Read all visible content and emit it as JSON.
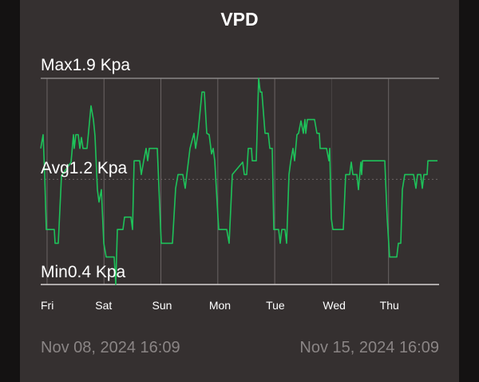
{
  "title": "VPD",
  "stats": {
    "max": "Max1.9 Kpa",
    "avg": "Avg1.2 Kpa",
    "min": "Min0.4 Kpa"
  },
  "range": {
    "start": "Nov 08, 2024 16:09",
    "end": "Nov 15, 2024 16:09"
  },
  "colors": {
    "line": "#1ec25a",
    "panel": "#353030",
    "background": "#141212",
    "muted_text": "#8a8585"
  },
  "chart_data": {
    "type": "line",
    "title": "VPD",
    "ylabel": "",
    "unit": "Kpa",
    "ylim": [
      0.4,
      1.9
    ],
    "max": 1.9,
    "avg": 1.2,
    "min": 0.4,
    "xlim": [
      "2024-11-08T16:09",
      "2024-11-15T16:09"
    ],
    "x_ticks": [
      {
        "label": "Fri",
        "t": "2024-11-08T18:50"
      },
      {
        "label": "Sat",
        "t": "2024-11-09T18:50"
      },
      {
        "label": "Sun",
        "t": "2024-11-10T18:50"
      },
      {
        "label": "Mon",
        "t": "2024-11-11T18:50"
      },
      {
        "label": "Tue",
        "t": "2024-11-12T18:50"
      },
      {
        "label": "Wed",
        "t": "2024-11-13T18:50"
      },
      {
        "label": "Thu",
        "t": "2024-11-14T18:50"
      }
    ],
    "grid": true,
    "legend": "none",
    "points": [
      [
        "2024-11-08T16:09",
        1.39
      ],
      [
        "2024-11-08T17:10",
        1.49
      ],
      [
        "2024-11-08T17:50",
        1.19
      ],
      [
        "2024-11-08T18:30",
        0.8
      ],
      [
        "2024-11-08T21:52",
        0.8
      ],
      [
        "2024-11-08T22:13",
        0.7
      ],
      [
        "2024-11-08T23:33",
        0.7
      ],
      [
        "2024-11-09T00:54",
        1.19
      ],
      [
        "2024-11-09T04:57",
        1.29
      ],
      [
        "2024-11-09T05:57",
        1.49
      ],
      [
        "2024-11-09T06:17",
        1.39
      ],
      [
        "2024-11-09T06:58",
        1.49
      ],
      [
        "2024-11-09T07:58",
        1.49
      ],
      [
        "2024-11-09T08:39",
        1.39
      ],
      [
        "2024-11-09T09:19",
        1.47
      ],
      [
        "2024-11-09T10:00",
        1.39
      ],
      [
        "2024-11-09T11:41",
        1.39
      ],
      [
        "2024-11-09T13:22",
        1.7
      ],
      [
        "2024-11-09T14:22",
        1.6
      ],
      [
        "2024-11-09T15:03",
        1.48
      ],
      [
        "2024-11-09T16:03",
        1.09
      ],
      [
        "2024-11-09T16:44",
        1.0
      ],
      [
        "2024-11-09T17:44",
        1.09
      ],
      [
        "2024-11-09T18:45",
        0.7
      ],
      [
        "2024-11-09T19:45",
        0.6
      ],
      [
        "2024-11-09T23:07",
        0.6
      ],
      [
        "2024-11-09T23:48",
        0.4
      ],
      [
        "2024-11-10T00:28",
        0.8
      ],
      [
        "2024-11-10T02:50",
        0.8
      ],
      [
        "2024-11-10T03:30",
        0.89
      ],
      [
        "2024-11-10T06:12",
        0.89
      ],
      [
        "2024-11-10T06:52",
        0.8
      ],
      [
        "2024-11-10T07:32",
        1.3
      ],
      [
        "2024-11-10T09:54",
        1.3
      ],
      [
        "2024-11-10T10:34",
        1.2
      ],
      [
        "2024-11-10T11:35",
        1.3
      ],
      [
        "2024-11-10T12:35",
        1.39
      ],
      [
        "2024-11-10T13:16",
        1.3
      ],
      [
        "2024-11-10T13:56",
        1.39
      ],
      [
        "2024-11-10T17:18",
        1.39
      ],
      [
        "2024-11-10T18:59",
        0.7
      ],
      [
        "2024-11-10T23:42",
        0.7
      ],
      [
        "2024-11-11T01:03",
        1.1
      ],
      [
        "2024-11-11T02:03",
        1.2
      ],
      [
        "2024-11-11T04:05",
        1.2
      ],
      [
        "2024-11-11T05:05",
        1.1
      ],
      [
        "2024-11-11T05:46",
        1.2
      ],
      [
        "2024-11-11T07:06",
        1.39
      ],
      [
        "2024-11-11T08:47",
        1.5
      ],
      [
        "2024-11-11T09:28",
        1.39
      ],
      [
        "2024-11-11T10:28",
        1.5
      ],
      [
        "2024-11-11T12:09",
        1.8
      ],
      [
        "2024-11-11T13:10",
        1.8
      ],
      [
        "2024-11-11T14:11",
        1.5
      ],
      [
        "2024-11-11T15:11",
        1.49
      ],
      [
        "2024-11-11T16:12",
        1.35
      ],
      [
        "2024-11-11T16:52",
        1.39
      ],
      [
        "2024-11-11T17:33",
        1.3
      ],
      [
        "2024-11-11T18:53",
        0.89
      ],
      [
        "2024-11-11T19:14",
        0.8
      ],
      [
        "2024-11-11T22:36",
        0.8
      ],
      [
        "2024-11-11T23:36",
        0.7
      ],
      [
        "2024-11-12T00:57",
        1.2
      ],
      [
        "2024-11-12T05:20",
        1.29
      ],
      [
        "2024-11-12T06:00",
        1.2
      ],
      [
        "2024-11-12T07:01",
        1.2
      ],
      [
        "2024-11-12T07:41",
        1.39
      ],
      [
        "2024-11-12T09:02",
        1.39
      ],
      [
        "2024-11-12T09:22",
        1.3
      ],
      [
        "2024-11-12T11:03",
        1.3
      ],
      [
        "2024-11-12T12:04",
        1.9
      ],
      [
        "2024-11-12T12:44",
        1.8
      ],
      [
        "2024-11-12T13:24",
        1.8
      ],
      [
        "2024-11-12T14:45",
        1.5
      ],
      [
        "2024-11-12T16:06",
        1.5
      ],
      [
        "2024-11-12T16:46",
        1.39
      ],
      [
        "2024-11-12T17:47",
        1.39
      ],
      [
        "2024-11-12T18:27",
        0.8
      ],
      [
        "2024-11-12T20:29",
        0.8
      ],
      [
        "2024-11-12T21:09",
        0.7
      ],
      [
        "2024-11-12T21:49",
        0.8
      ],
      [
        "2024-11-12T23:10",
        0.8
      ],
      [
        "2024-11-12T23:51",
        0.7
      ],
      [
        "2024-11-13T00:51",
        1.2
      ],
      [
        "2024-11-13T01:32",
        1.29
      ],
      [
        "2024-11-13T02:32",
        1.39
      ],
      [
        "2024-11-13T03:13",
        1.3
      ],
      [
        "2024-11-13T04:13",
        1.49
      ],
      [
        "2024-11-13T04:54",
        1.5
      ],
      [
        "2024-11-13T05:54",
        1.59
      ],
      [
        "2024-11-13T06:55",
        1.5
      ],
      [
        "2024-11-13T07:35",
        1.6
      ],
      [
        "2024-11-13T07:55",
        1.5
      ],
      [
        "2024-11-13T08:36",
        1.6
      ],
      [
        "2024-11-13T11:38",
        1.6
      ],
      [
        "2024-11-13T12:38",
        1.5
      ],
      [
        "2024-11-13T13:39",
        1.5
      ],
      [
        "2024-11-13T13:59",
        1.39
      ],
      [
        "2024-11-13T16:41",
        1.39
      ],
      [
        "2024-11-13T17:41",
        1.3
      ],
      [
        "2024-11-13T18:01",
        1.39
      ],
      [
        "2024-11-13T18:42",
        0.88
      ],
      [
        "2024-11-13T19:22",
        0.8
      ],
      [
        "2024-11-13T23:45",
        0.8
      ],
      [
        "2024-11-14T00:45",
        1.2
      ],
      [
        "2024-11-14T02:26",
        1.2
      ],
      [
        "2024-11-14T03:07",
        1.29
      ],
      [
        "2024-11-14T03:47",
        1.2
      ],
      [
        "2024-11-14T05:28",
        1.2
      ],
      [
        "2024-11-14T06:09",
        1.09
      ],
      [
        "2024-11-14T07:09",
        1.29
      ],
      [
        "2024-11-14T07:29",
        1.2
      ],
      [
        "2024-11-14T07:50",
        1.3
      ],
      [
        "2024-11-14T17:15",
        1.3
      ],
      [
        "2024-11-14T18:16",
        0.88
      ],
      [
        "2024-11-14T19:16",
        0.6
      ],
      [
        "2024-11-14T22:18",
        0.6
      ],
      [
        "2024-11-14T22:59",
        0.7
      ],
      [
        "2024-11-14T23:59",
        0.7
      ],
      [
        "2024-11-15T00:40",
        1.09
      ],
      [
        "2024-11-15T01:40",
        1.2
      ],
      [
        "2024-11-15T05:22",
        1.2
      ],
      [
        "2024-11-15T06:23",
        1.1
      ],
      [
        "2024-11-15T07:03",
        1.2
      ],
      [
        "2024-11-15T08:24",
        1.2
      ],
      [
        "2024-11-15T09:05",
        1.1
      ],
      [
        "2024-11-15T09:45",
        1.2
      ],
      [
        "2024-11-15T11:06",
        1.2
      ],
      [
        "2024-11-15T11:26",
        1.3
      ],
      [
        "2024-11-15T15:28",
        1.3
      ]
    ]
  }
}
